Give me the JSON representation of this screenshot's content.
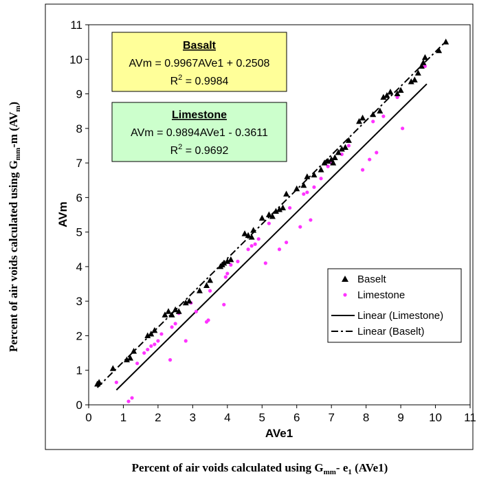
{
  "chart_data": {
    "type": "scatter",
    "xlabel": "AVe1",
    "ylabel": "AVm",
    "outer_xlabel": "Percent of air voids calculated using G",
    "outer_xlabel_sub": "mm",
    "outer_xlabel_mid": "- e",
    "outer_xlabel_sub2": "1",
    "outer_xlabel_end": " (AVe1)",
    "outer_ylabel": "Percent of air voids calculated using G",
    "outer_ylabel_sub": "mm",
    "outer_ylabel_mid": "-m (AV",
    "outer_ylabel_sub2": "m",
    "outer_ylabel_end": ")",
    "xlim": [
      0,
      11
    ],
    "ylim": [
      0,
      11
    ],
    "xticks": [
      "0",
      "1",
      "2",
      "3",
      "4",
      "5",
      "6",
      "7",
      "8",
      "9",
      "10",
      "11"
    ],
    "yticks": [
      "0",
      "1",
      "2",
      "3",
      "4",
      "5",
      "6",
      "7",
      "8",
      "9",
      "10",
      "11"
    ],
    "grid": false,
    "legend_position": "lower-right",
    "legend": [
      "Baselt",
      "Limestone",
      "Linear (Limestone)",
      "Linear (Baselt)"
    ],
    "annotations": {
      "basalt": {
        "title": "Basalt",
        "equation": "AVm = 0.9967AVe1 + 0.2508",
        "r2_prefix": "R",
        "r2_sup": "2",
        "r2_value": " = 0.9984",
        "fill": "#FFFF99"
      },
      "limestone": {
        "title": "Limestone",
        "equation": "AVm = 0.9894AVe1 - 0.3611",
        "r2_prefix": "R",
        "r2_sup": "2",
        "r2_value": " = 0.9692",
        "fill": "#CCFFCC"
      }
    },
    "series": [
      {
        "name": "Baselt",
        "marker": "triangle",
        "color": "#000000",
        "x": [
          0.25,
          0.3,
          0.7,
          1.1,
          1.2,
          1.3,
          1.7,
          1.8,
          1.9,
          2.2,
          2.3,
          2.4,
          2.5,
          2.6,
          2.8,
          2.9,
          3.2,
          3.4,
          3.5,
          3.8,
          3.85,
          3.9,
          4.0,
          4.1,
          4.5,
          4.6,
          4.7,
          4.75,
          5.0,
          5.2,
          5.3,
          5.4,
          5.5,
          5.6,
          5.7,
          6.0,
          6.2,
          6.3,
          6.5,
          6.7,
          6.8,
          6.9,
          7.0,
          7.05,
          7.1,
          7.2,
          7.3,
          7.4,
          7.5,
          7.8,
          7.9,
          8.2,
          8.4,
          8.5,
          8.6,
          8.7,
          8.9,
          9.0,
          9.3,
          9.4,
          9.5,
          9.6,
          9.65,
          9.7,
          10.1,
          10.3
        ],
        "y": [
          0.6,
          0.65,
          1.05,
          1.3,
          1.35,
          1.55,
          2.0,
          2.05,
          2.15,
          2.6,
          2.7,
          2.6,
          2.75,
          2.7,
          2.95,
          3.0,
          3.3,
          3.45,
          3.6,
          4.0,
          4.05,
          4.1,
          4.15,
          4.2,
          4.95,
          4.9,
          4.85,
          5.05,
          5.4,
          5.5,
          5.45,
          5.6,
          5.65,
          5.7,
          6.1,
          6.25,
          6.35,
          6.6,
          6.65,
          6.8,
          7.0,
          7.05,
          7.1,
          7.0,
          7.15,
          7.3,
          7.4,
          7.45,
          7.65,
          8.2,
          8.3,
          8.4,
          8.5,
          8.9,
          8.95,
          9.05,
          9.0,
          9.1,
          9.35,
          9.4,
          9.6,
          9.8,
          9.9,
          10.05,
          10.25,
          10.5
        ]
      },
      {
        "name": "Limestone",
        "marker": "dot",
        "color": "#FF33FF",
        "x": [
          0.8,
          1.15,
          1.25,
          1.4,
          1.6,
          1.7,
          1.8,
          1.9,
          2.0,
          2.1,
          2.35,
          2.4,
          2.5,
          2.6,
          2.8,
          2.95,
          3.1,
          3.4,
          3.45,
          3.5,
          3.9,
          3.95,
          4.0,
          4.1,
          4.3,
          4.6,
          4.7,
          4.8,
          4.9,
          5.1,
          5.2,
          5.5,
          5.7,
          5.8,
          6.1,
          6.2,
          6.3,
          6.4,
          6.5,
          6.7,
          6.9,
          7.0,
          7.3,
          7.5,
          7.9,
          8.1,
          8.2,
          8.3,
          8.5,
          8.9,
          9.05,
          9.7
        ],
        "y": [
          0.65,
          0.1,
          0.2,
          1.2,
          1.5,
          1.6,
          1.7,
          1.75,
          1.85,
          2.05,
          1.3,
          2.25,
          2.35,
          2.65,
          1.85,
          2.95,
          2.7,
          2.4,
          2.45,
          3.3,
          2.9,
          3.7,
          3.8,
          4.05,
          4.15,
          4.5,
          4.6,
          4.65,
          4.8,
          4.1,
          5.25,
          4.5,
          4.7,
          5.7,
          5.15,
          6.1,
          6.15,
          5.35,
          6.3,
          6.55,
          6.9,
          7.0,
          7.25,
          7.5,
          6.8,
          7.1,
          8.2,
          7.3,
          8.35,
          8.9,
          8.0,
          9.8
        ]
      }
    ],
    "fit_lines": [
      {
        "name": "Linear (Limestone)",
        "style": "solid",
        "slope": 0.9894,
        "intercept": -0.3611,
        "x_range": [
          0.8,
          9.75
        ]
      },
      {
        "name": "Linear (Baselt)",
        "style": "dashdot",
        "slope": 0.9967,
        "intercept": 0.2508,
        "x_range": [
          0.25,
          10.3
        ]
      }
    ]
  }
}
